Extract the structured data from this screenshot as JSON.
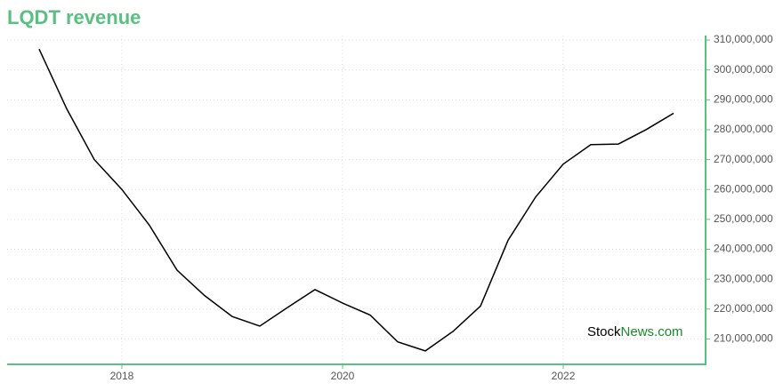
{
  "chart_data": {
    "type": "line",
    "title": "LQDT revenue",
    "x": [
      2017.25,
      2017.5,
      2017.75,
      2018,
      2018.25,
      2018.5,
      2018.75,
      2019,
      2019.25,
      2019.5,
      2019.75,
      2020,
      2020.25,
      2020.5,
      2020.75,
      2021,
      2021.25,
      2021.5,
      2021.75,
      2022,
      2022.25,
      2022.5,
      2022.75,
      2023
    ],
    "series": [
      {
        "name": "revenue",
        "color": "#000000",
        "values": [
          307000000,
          287000000,
          270000000,
          260000000,
          248000000,
          233000000,
          224500000,
          217500000,
          214300000,
          220500000,
          226500000,
          222000000,
          218000000,
          209000000,
          206000000,
          212500000,
          221000000,
          243000000,
          257500000,
          268500000,
          275000000,
          275200000,
          280000000,
          285500000
        ]
      }
    ],
    "xlim": [
      2016.96,
      2023.29
    ],
    "xticks": [
      2018,
      2020,
      2022
    ],
    "ylim": [
      201500000,
      311500000
    ],
    "yticks": [
      {
        "value": 210000000,
        "label": "210,000,000"
      },
      {
        "value": 220000000,
        "label": "220,000,000"
      },
      {
        "value": 230000000,
        "label": "230,000,000"
      },
      {
        "value": 240000000,
        "label": "240,000,000"
      },
      {
        "value": 250000000,
        "label": "250,000,000"
      },
      {
        "value": 260000000,
        "label": "260,000,000"
      },
      {
        "value": 270000000,
        "label": "270,000,000"
      },
      {
        "value": 280000000,
        "label": "280,000,000"
      },
      {
        "value": 290000000,
        "label": "290,000,000"
      },
      {
        "value": 300000000,
        "label": "300,000,000"
      },
      {
        "value": 310000000,
        "label": "310,000,000"
      }
    ],
    "grid": true,
    "axis_color": "#5bbf82",
    "watermark": [
      "Stock",
      "News.com"
    ]
  }
}
